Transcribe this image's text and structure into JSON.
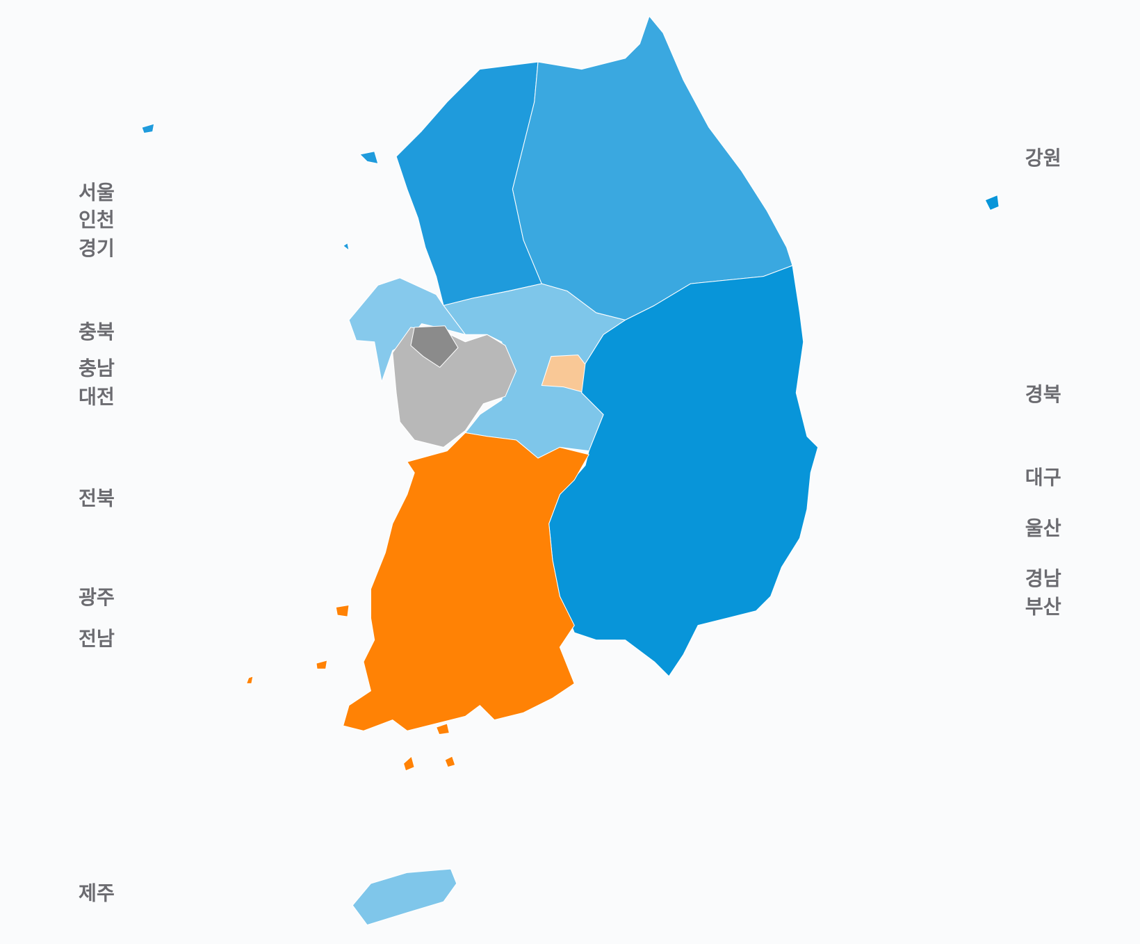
{
  "labels_left": [
    "서울",
    "인천",
    "경기",
    "충북",
    "충남",
    "대전",
    "전북",
    "광주",
    "전남",
    "제주"
  ],
  "labels_right": [
    "강원",
    "경북",
    "대구",
    "울산",
    "경남",
    "부산"
  ]
}
